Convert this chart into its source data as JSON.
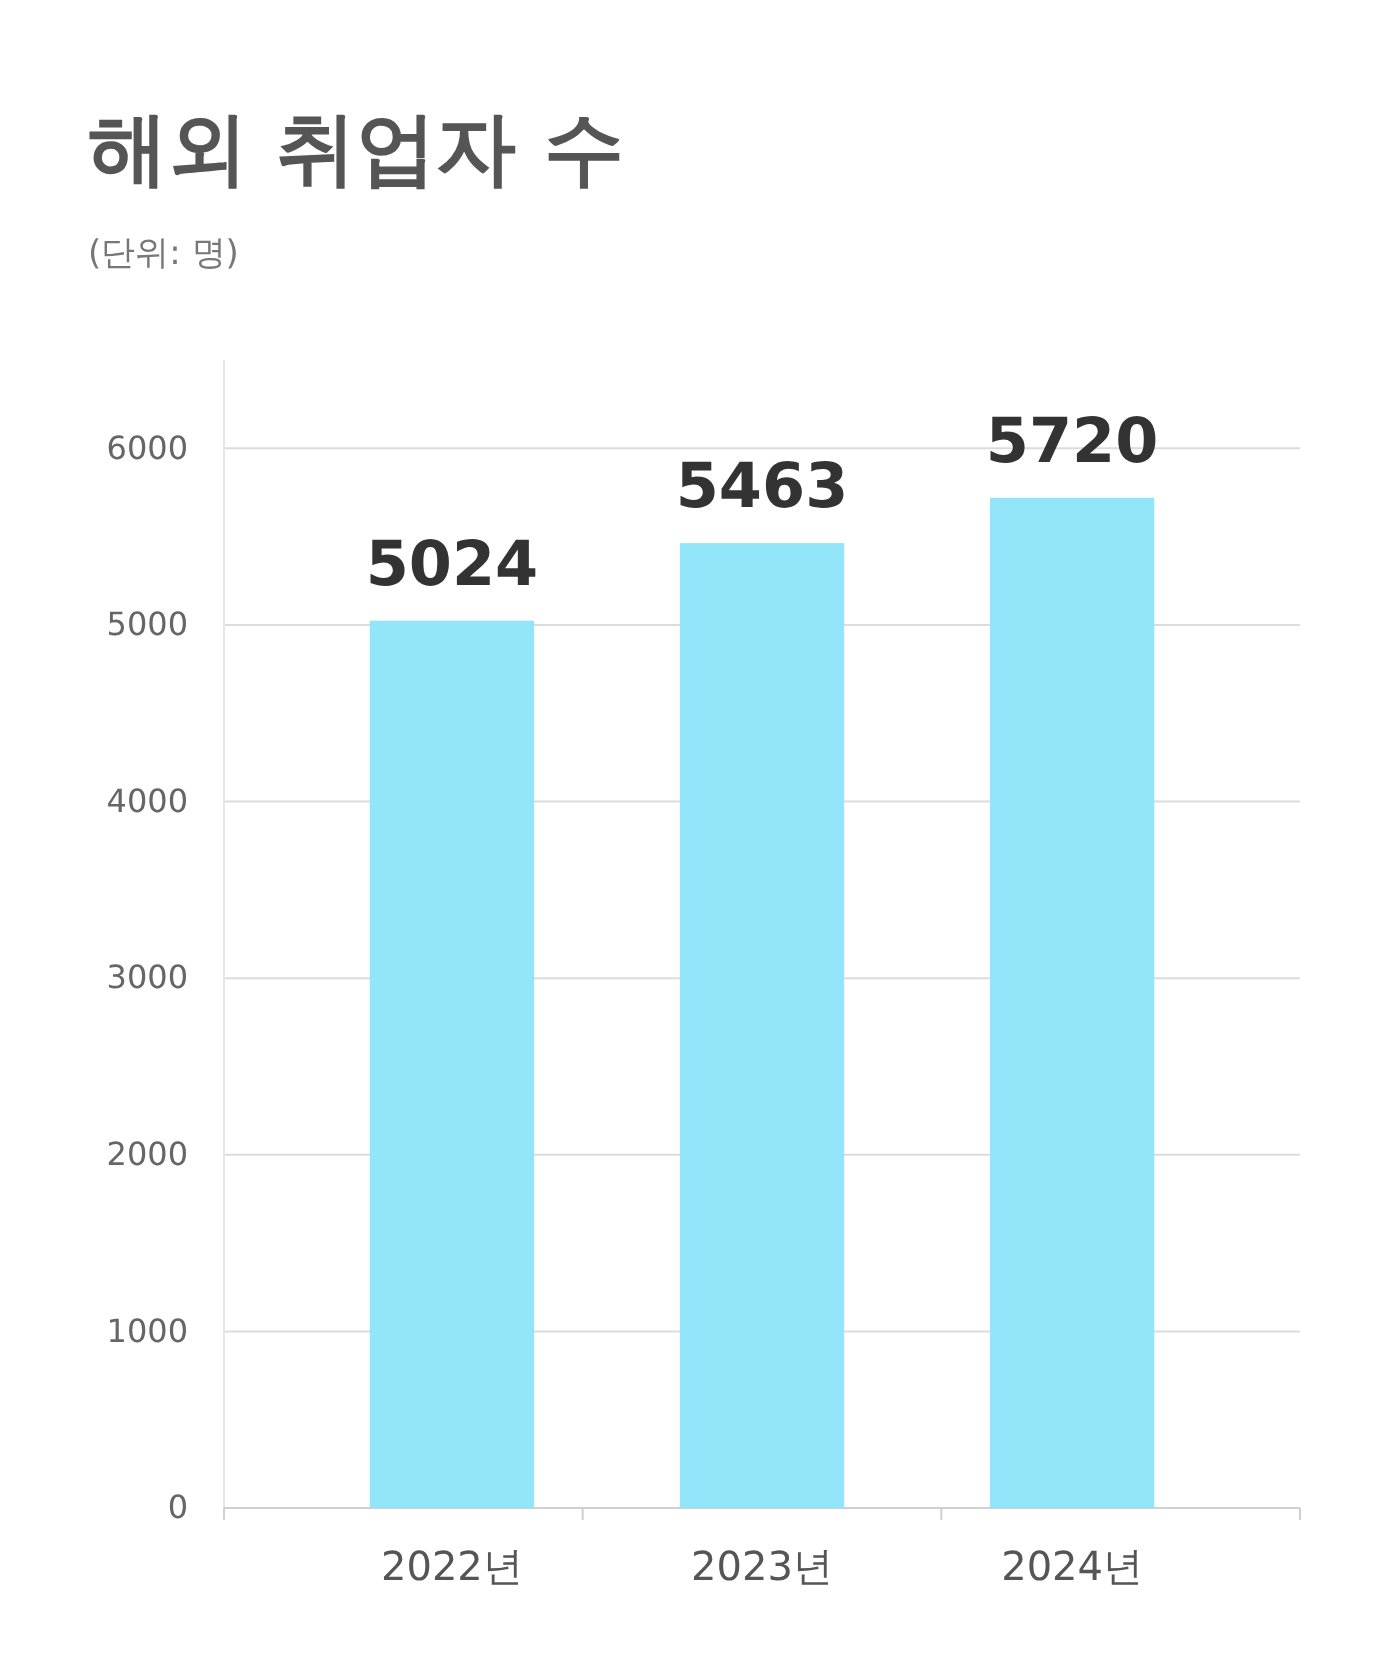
{
  "chart_data": {
    "type": "bar",
    "title": "해외 취업자 수",
    "subtitle": "(단위: 명)",
    "categories": [
      "2022년",
      "2023년",
      "2024년"
    ],
    "values": [
      5024,
      5463,
      5720
    ],
    "color": "#93e5f9",
    "ylim": [
      0,
      6500
    ],
    "yticks": [
      0,
      1000,
      2000,
      3000,
      4000,
      5000,
      6000
    ],
    "grid": "y",
    "data_labels": true
  }
}
